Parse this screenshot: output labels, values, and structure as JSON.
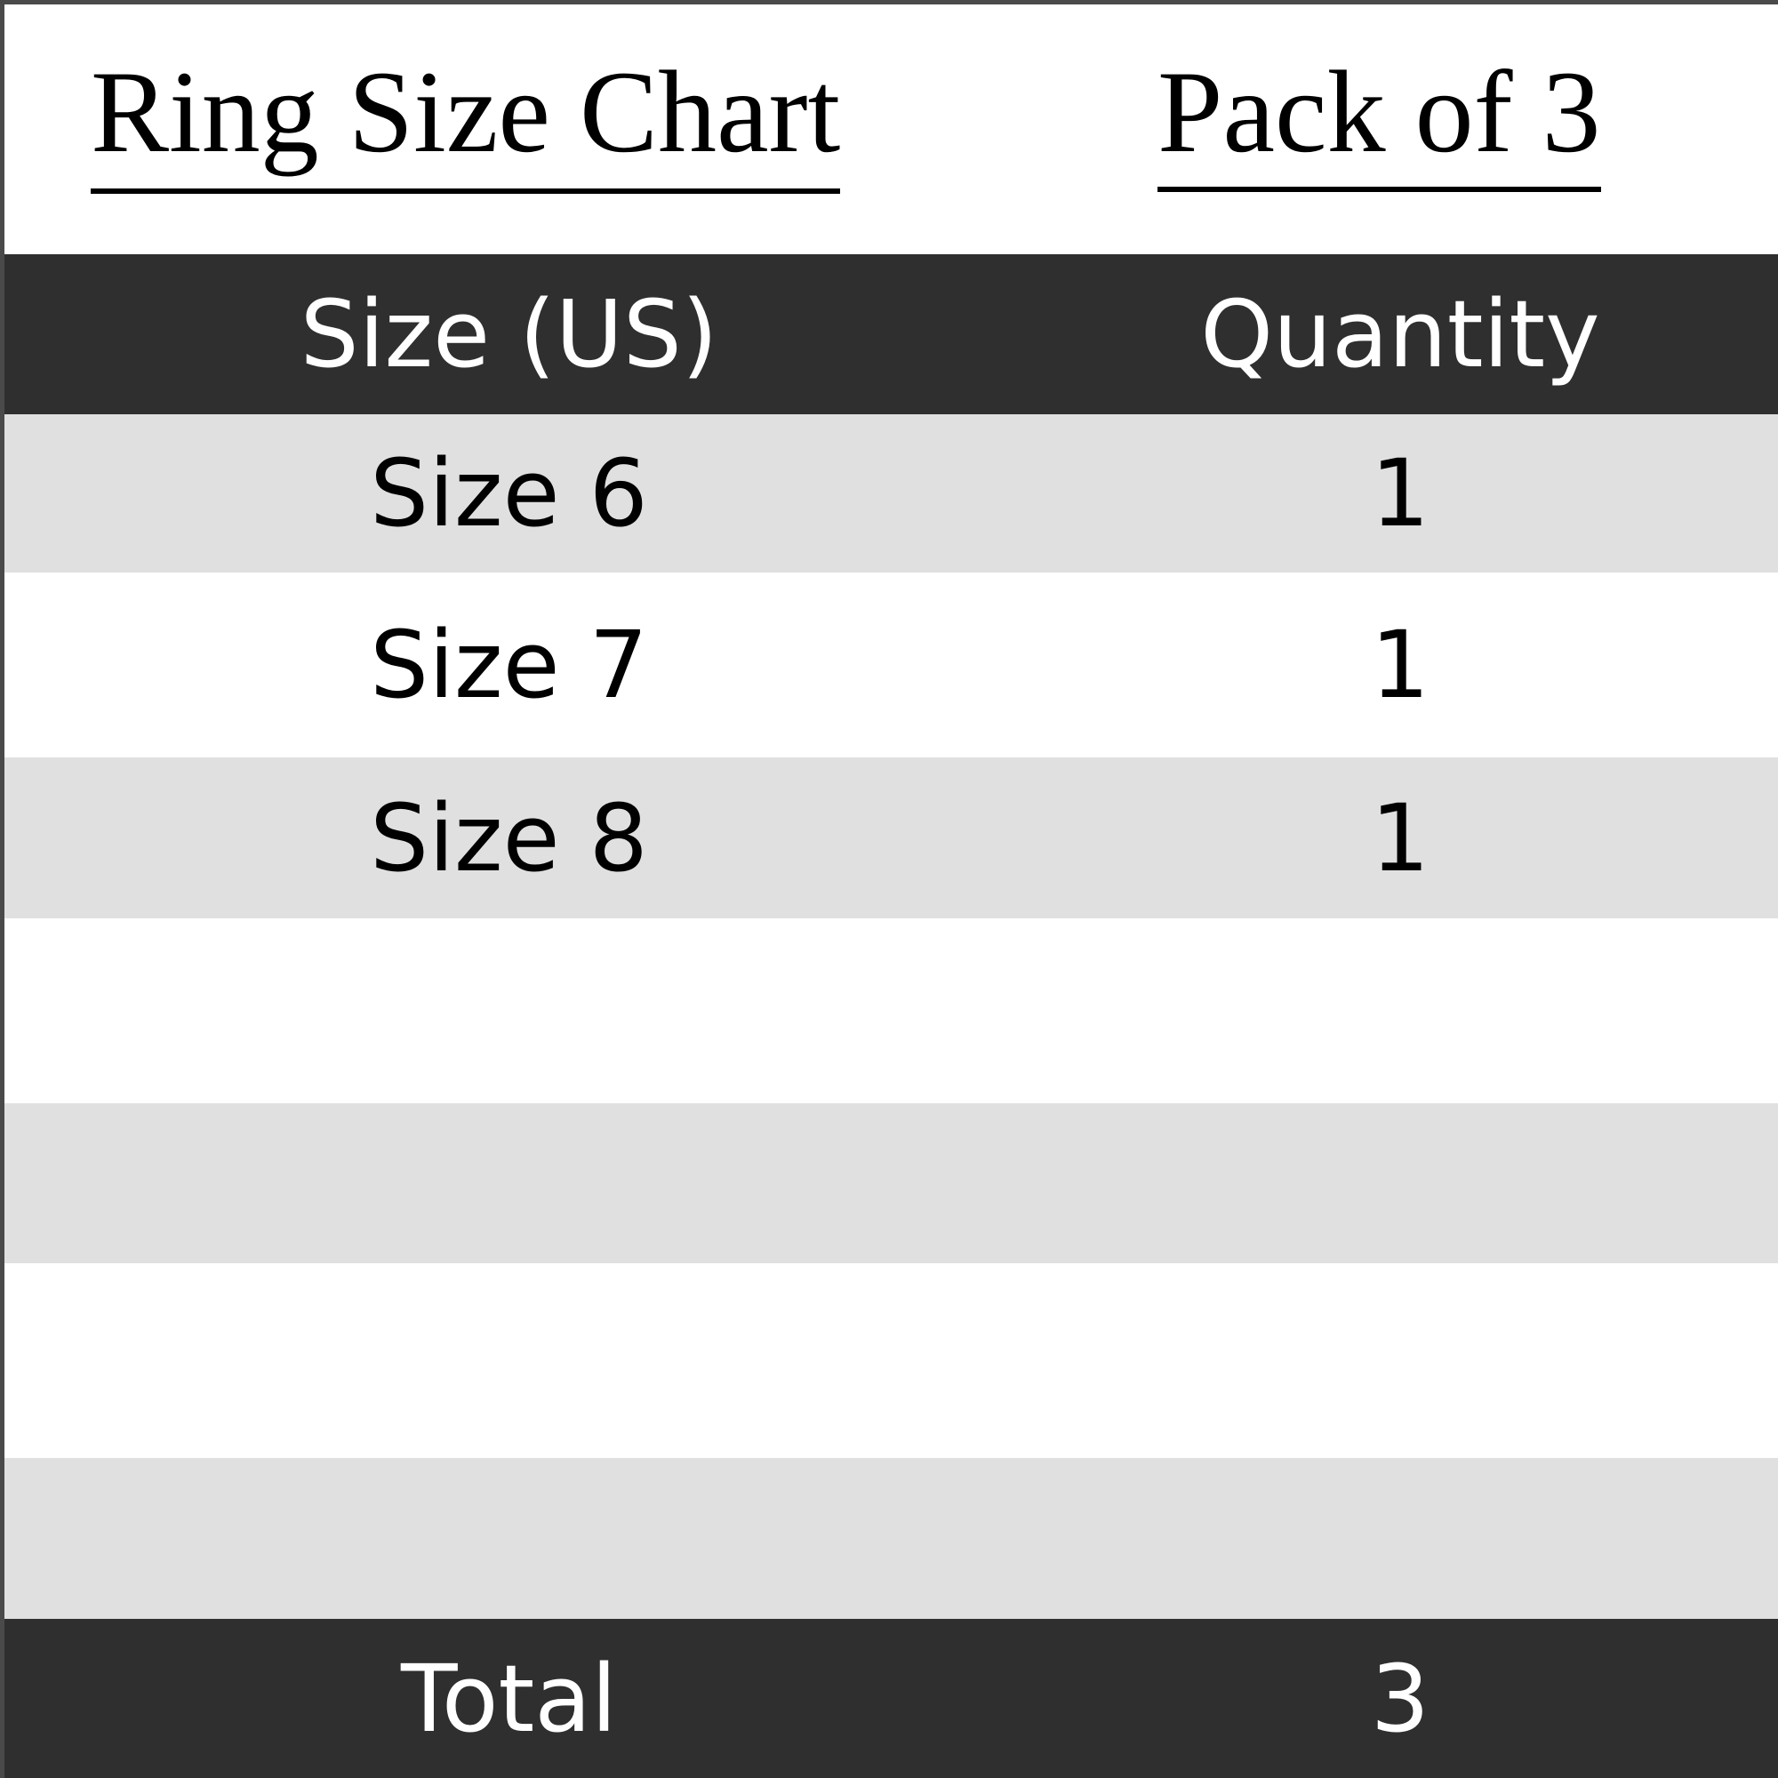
{
  "title": "Ring Size Chart",
  "pack": "Pack of 3",
  "header": {
    "size": "Size (US)",
    "quantity": "Quantity"
  },
  "rows": [
    {
      "size": "Size 6",
      "quantity": "1"
    },
    {
      "size": "Size 7",
      "quantity": "1"
    },
    {
      "size": "Size 8",
      "quantity": "1"
    },
    {
      "size": "",
      "quantity": ""
    },
    {
      "size": "",
      "quantity": ""
    },
    {
      "size": "",
      "quantity": ""
    },
    {
      "size": "",
      "quantity": ""
    }
  ],
  "footer": {
    "label": "Total",
    "quantity": "3"
  },
  "colors": {
    "header_bg": "#2f2f2f",
    "stripe": "#e0e0e0",
    "border": "#4a4a4a"
  }
}
